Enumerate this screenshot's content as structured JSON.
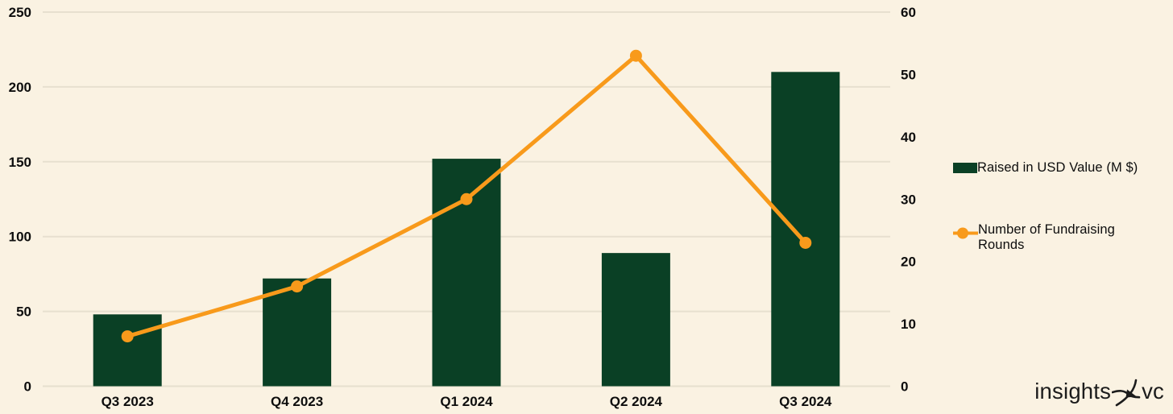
{
  "chart_data": {
    "type": "combo-bar-line",
    "title": "",
    "categories": [
      "Q3 2023",
      "Q4 2023",
      "Q1 2024",
      "Q2 2024",
      "Q3 2024"
    ],
    "series": [
      {
        "name": "Raised in USD Value (M $)",
        "type": "bar",
        "axis": "left",
        "color": "#0a4025",
        "values": [
          48,
          72,
          152,
          89,
          210
        ]
      },
      {
        "name": "Number of Fundraising Rounds",
        "type": "line",
        "axis": "right",
        "color": "#f89a1b",
        "values": [
          8,
          16,
          30,
          53,
          23
        ]
      }
    ],
    "left_axis": {
      "min": 0,
      "max": 250,
      "ticks": [
        0,
        50,
        100,
        150,
        200,
        250
      ]
    },
    "right_axis": {
      "min": 0,
      "max": 60,
      "ticks": [
        0,
        10,
        20,
        30,
        40,
        50,
        60
      ]
    },
    "grid": "horizontal lines at left-axis ticks",
    "legend_position": "right"
  },
  "legend": {
    "items": [
      {
        "label": "Raised in USD Value (M $)",
        "swatch": "bar",
        "color": "#0a4025"
      },
      {
        "label": "Number of Fundraising Rounds",
        "swatch": "line-dot",
        "color": "#f89a1b"
      }
    ]
  },
  "branding": {
    "wordmark_left": "insights",
    "wordmark_right": "vc",
    "icon": "bird-icon"
  },
  "colors": {
    "background": "#faf2e2",
    "bar": "#0a4025",
    "line": "#f89a1b",
    "gridline": "#e7e0cf",
    "axis_text": "#0d0d0d",
    "logo_text": "#1c1c1c"
  }
}
